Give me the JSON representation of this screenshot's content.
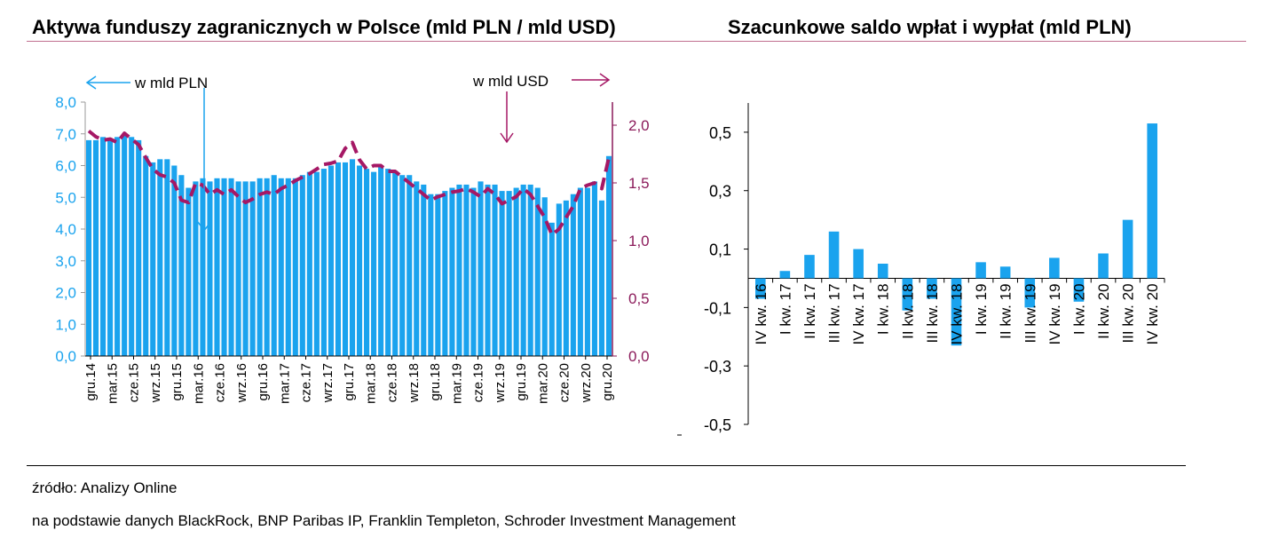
{
  "titles": {
    "left": "Aktywa funduszy zagranicznych w Polsce (mld PLN / mld USD)",
    "right": "Szacunkowe saldo wpłat i wypłat (mld PLN)"
  },
  "footer": {
    "source": "źródło: Analizy Online",
    "basis": "na podstawie danych BlackRock, BNP Paribas IP, Franklin Templeton, Schroder Investment Management"
  },
  "colors": {
    "bar": "#1aa3ee",
    "line": "#a51865",
    "axis_left": "#1aa3ee",
    "axis_right": "#8b1a5a"
  },
  "chart_data": [
    {
      "type": "bar",
      "series": [
        {
          "name": "w mld PLN",
          "axis": "left",
          "values": [
            6.8,
            6.8,
            6.9,
            6.8,
            6.9,
            7.0,
            6.9,
            6.8,
            6.3,
            6.1,
            6.2,
            6.2,
            6.0,
            5.7,
            5.3,
            5.5,
            5.6,
            5.5,
            5.6,
            5.6,
            5.6,
            5.5,
            5.5,
            5.5,
            5.6,
            5.6,
            5.7,
            5.6,
            5.6,
            5.6,
            5.7,
            5.8,
            5.8,
            5.9,
            6.0,
            6.1,
            6.1,
            6.2,
            6.0,
            5.9,
            5.8,
            6.0,
            5.9,
            5.8,
            5.7,
            5.7,
            5.5,
            5.4,
            5.1,
            5.1,
            5.2,
            5.3,
            5.4,
            5.4,
            5.3,
            5.5,
            5.4,
            5.4,
            5.2,
            5.2,
            5.3,
            5.4,
            5.4,
            5.3,
            5.0,
            4.2,
            4.8,
            4.9,
            5.1,
            5.3,
            5.3,
            5.5,
            4.9,
            6.3
          ]
        },
        {
          "name": "w mld USD",
          "axis": "right",
          "values": [
            1.95,
            1.9,
            1.87,
            1.88,
            1.85,
            1.93,
            1.88,
            1.83,
            1.72,
            1.62,
            1.57,
            1.55,
            1.5,
            1.35,
            1.33,
            1.5,
            1.48,
            1.4,
            1.44,
            1.4,
            1.44,
            1.38,
            1.33,
            1.36,
            1.4,
            1.42,
            1.4,
            1.45,
            1.48,
            1.52,
            1.55,
            1.58,
            1.62,
            1.66,
            1.67,
            1.69,
            1.8,
            1.85,
            1.7,
            1.62,
            1.65,
            1.65,
            1.6,
            1.6,
            1.55,
            1.5,
            1.45,
            1.4,
            1.35,
            1.38,
            1.4,
            1.42,
            1.43,
            1.45,
            1.42,
            1.38,
            1.45,
            1.4,
            1.32,
            1.35,
            1.38,
            1.45,
            1.4,
            1.3,
            1.2,
            1.05,
            1.1,
            1.2,
            1.3,
            1.45,
            1.48,
            1.5,
            1.45,
            1.72
          ]
        }
      ],
      "x_labels": [
        "gru.14",
        "mar.15",
        "cze.15",
        "wrz.15",
        "gru.15",
        "mar.16",
        "cze.16",
        "wrz.16",
        "gru.16",
        "mar.17",
        "cze.17",
        "wrz.17",
        "gru.17",
        "mar.18",
        "cze.18",
        "wrz.18",
        "gru.18",
        "mar.19",
        "cze.19",
        "wrz.19",
        "gru.19",
        "mar.20",
        "cze.20",
        "wrz.20",
        "gru.20"
      ],
      "y_left": {
        "ticks": [
          "0,0",
          "1,0",
          "2,0",
          "3,0",
          "4,0",
          "5,0",
          "6,0",
          "7,0",
          "8,0"
        ],
        "ylim": [
          0,
          8
        ]
      },
      "y_right": {
        "ticks": [
          "0,0",
          "0,5",
          "1,0",
          "1,5",
          "2,0"
        ],
        "ylim": [
          0,
          2.2
        ]
      },
      "annotations": {
        "left_unit": "w mld PLN",
        "right_unit": "w mld USD"
      }
    },
    {
      "type": "bar",
      "categories": [
        "IV kw. 16",
        "I kw. 17",
        "II kw. 17",
        "III kw. 17",
        "IV kw. 17",
        "I kw. 18",
        "II kw. 18",
        "III kw. 18",
        "IV kw. 18",
        "I kw. 19",
        "II kw. 19",
        "III kw. 19",
        "IV kw. 19",
        "I kw. 20",
        "II kw. 20",
        "III kw. 20",
        "IV kw. 20"
      ],
      "values": [
        -0.07,
        0.025,
        0.08,
        0.16,
        0.1,
        0.05,
        -0.11,
        -0.07,
        -0.23,
        0.055,
        0.04,
        -0.1,
        0.07,
        -0.08,
        0.085,
        0.2,
        0.53
      ],
      "y_ticks": [
        "0,5",
        "0,3",
        "0,1",
        "-0,1",
        "-0,3",
        "-0,5"
      ],
      "ylim": [
        -0.5,
        0.6
      ]
    }
  ]
}
